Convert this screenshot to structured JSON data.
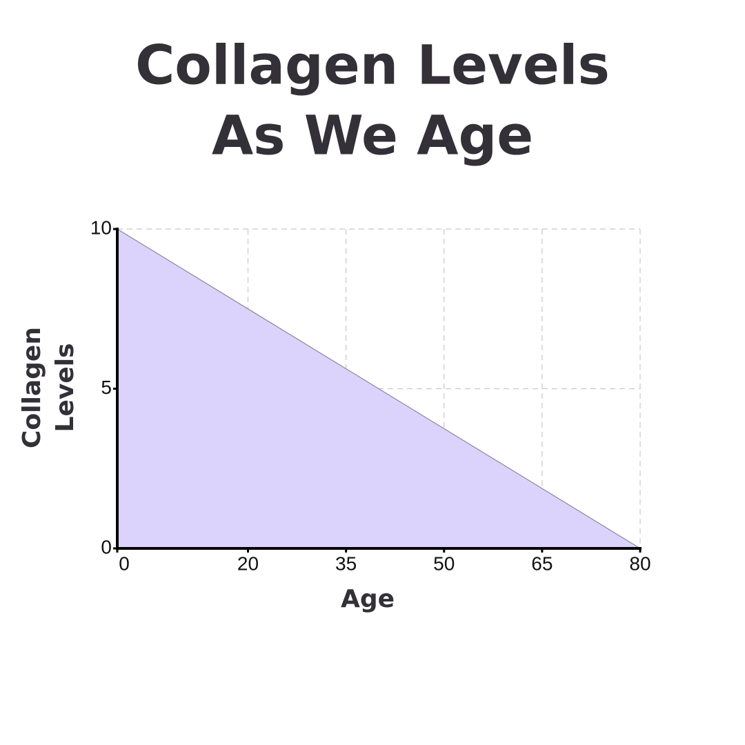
{
  "chart_data": {
    "type": "area",
    "title": [
      "Collagen Levels",
      "As We Age"
    ],
    "x_label": "Age",
    "y_label": [
      "Collagen",
      "Levels"
    ],
    "x": [
      0,
      80
    ],
    "series": [
      {
        "name": "Collagen Levels",
        "color": "#dcd3fc",
        "values": [
          10,
          0
        ]
      }
    ],
    "line_color": "#8a8797",
    "xlim": [
      0,
      80
    ],
    "xticks": [
      0,
      20,
      35,
      50,
      65,
      80
    ],
    "ylim": [
      0,
      10
    ],
    "yticks": [
      0,
      5,
      10
    ],
    "grid": true
  }
}
